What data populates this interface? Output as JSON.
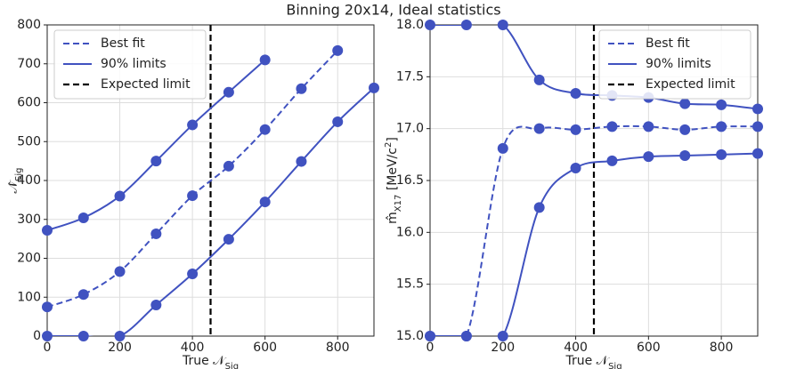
{
  "title": "Binning 20x14, Ideal statistics",
  "chart_data": [
    {
      "type": "line",
      "xlabel": [
        {
          "text": "True 𝒩"
        },
        {
          "text": "Sig",
          "shift": "sub"
        }
      ],
      "ylabel": [
        {
          "text": "𝒩̂"
        },
        {
          "text": "Sig",
          "shift": "sub"
        }
      ],
      "x": [
        0,
        100,
        200,
        300,
        400,
        500,
        600,
        700,
        800,
        900
      ],
      "series": [
        {
          "name": "Best fit",
          "color": "#4052c0",
          "dash": true,
          "values": [
            75,
            107,
            166,
            263,
            361,
            437,
            531,
            636,
            734,
            null
          ]
        },
        {
          "name": "90% limits",
          "color": "#4052c0",
          "dash": false,
          "values": [
            272,
            304,
            360,
            450,
            543,
            627,
            710,
            null,
            null,
            null
          ]
        },
        {
          "color": "#4052c0",
          "dash": false,
          "values": [
            0,
            0,
            0,
            80,
            160,
            249,
            345,
            449,
            551,
            638
          ]
        }
      ],
      "vline": {
        "name": "Expected limit",
        "x": 450,
        "color": "#000000"
      },
      "xlim": [
        0,
        900
      ],
      "xticks": [
        0,
        200,
        400,
        600,
        800
      ],
      "ylim": [
        0,
        800
      ],
      "yticks": [
        0,
        100,
        200,
        300,
        400,
        500,
        600,
        700,
        800
      ],
      "grid": true,
      "legend": "upper-left"
    },
    {
      "type": "line",
      "xlabel": [
        {
          "text": "True 𝒩"
        },
        {
          "text": "Sig",
          "shift": "sub"
        }
      ],
      "ylabel": [
        {
          "text": "m̂"
        },
        {
          "text": "X17",
          "shift": "sub"
        },
        {
          "text": " [MeV/c"
        },
        {
          "text": "2",
          "shift": "super"
        },
        {
          "text": "]"
        }
      ],
      "x": [
        0,
        100,
        200,
        300,
        400,
        500,
        600,
        700,
        800,
        900
      ],
      "series": [
        {
          "name": "Best fit",
          "color": "#4052c0",
          "dash": true,
          "values": [
            15.0,
            15.0,
            16.81,
            17.0,
            16.99,
            17.02,
            17.02,
            16.99,
            17.02,
            17.02
          ]
        },
        {
          "name": "90% limits",
          "color": "#4052c0",
          "dash": false,
          "values": [
            18.0,
            18.0,
            18.0,
            17.47,
            17.34,
            17.32,
            17.3,
            17.24,
            17.23,
            17.19
          ]
        },
        {
          "color": "#4052c0",
          "dash": false,
          "values": [
            15.0,
            15.0,
            15.0,
            16.24,
            16.62,
            16.69,
            16.73,
            16.74,
            16.75,
            16.76
          ]
        }
      ],
      "vline": {
        "name": "Expected limit",
        "x": 450,
        "color": "#000000"
      },
      "xlim": [
        0,
        900
      ],
      "xticks": [
        0,
        200,
        400,
        600,
        800
      ],
      "ylim": [
        15.0,
        18.0
      ],
      "yticks": [
        {
          "value": 15.0,
          "label": "15.0"
        },
        15.5,
        {
          "value": 16.0,
          "label": "16.0"
        },
        16.5,
        {
          "value": 17.0,
          "label": "17.0"
        },
        17.5,
        {
          "value": 18.0,
          "label": "18.0"
        }
      ],
      "grid": true,
      "legend": "upper-right"
    }
  ]
}
